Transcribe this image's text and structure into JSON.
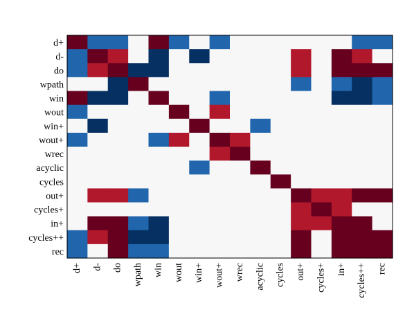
{
  "chart_data": {
    "type": "heatmap",
    "title": "",
    "xlabel": "",
    "ylabel": "",
    "labels": [
      "d+",
      "d-",
      "do",
      "wpath",
      "win",
      "wout",
      "win+",
      "wout+",
      "wrec",
      "acyclic",
      "cycles",
      "out+",
      "cycles+",
      "in+",
      "cycles++",
      "rec"
    ],
    "colors": {
      "0": "#f7f7f7",
      "1": "#2166ac",
      "2": "#053061",
      "3": "#b2182b",
      "4": "#67001f",
      "frame": "#000000"
    },
    "matrix": [
      [
        4,
        1,
        1,
        0,
        4,
        1,
        0,
        1,
        0,
        0,
        0,
        0,
        0,
        0,
        1,
        1
      ],
      [
        1,
        4,
        3,
        0,
        2,
        0,
        2,
        0,
        0,
        0,
        0,
        3,
        0,
        4,
        3,
        0
      ],
      [
        1,
        3,
        4,
        2,
        2,
        0,
        0,
        0,
        0,
        0,
        0,
        3,
        0,
        4,
        4,
        4
      ],
      [
        0,
        0,
        2,
        4,
        0,
        0,
        0,
        0,
        0,
        0,
        0,
        1,
        0,
        1,
        2,
        1
      ],
      [
        4,
        2,
        2,
        0,
        4,
        0,
        0,
        1,
        0,
        0,
        0,
        0,
        0,
        2,
        2,
        1
      ],
      [
        1,
        0,
        0,
        0,
        0,
        4,
        0,
        3,
        0,
        0,
        0,
        0,
        0,
        0,
        0,
        0
      ],
      [
        0,
        2,
        0,
        0,
        0,
        0,
        4,
        0,
        0,
        1,
        0,
        0,
        0,
        0,
        0,
        0
      ],
      [
        1,
        0,
        0,
        0,
        1,
        3,
        0,
        4,
        3,
        0,
        0,
        0,
        0,
        0,
        0,
        0
      ],
      [
        0,
        0,
        0,
        0,
        0,
        0,
        0,
        3,
        4,
        0,
        0,
        0,
        0,
        0,
        0,
        0
      ],
      [
        0,
        0,
        0,
        0,
        0,
        0,
        1,
        0,
        0,
        4,
        0,
        0,
        0,
        0,
        0,
        0
      ],
      [
        0,
        0,
        0,
        0,
        0,
        0,
        0,
        0,
        0,
        0,
        4,
        0,
        0,
        0,
        0,
        0
      ],
      [
        0,
        3,
        3,
        1,
        0,
        0,
        0,
        0,
        0,
        0,
        0,
        4,
        3,
        3,
        4,
        4
      ],
      [
        0,
        0,
        0,
        0,
        0,
        0,
        0,
        0,
        0,
        0,
        0,
        3,
        4,
        3,
        0,
        0
      ],
      [
        0,
        4,
        4,
        1,
        2,
        0,
        0,
        0,
        0,
        0,
        0,
        3,
        3,
        4,
        4,
        0
      ],
      [
        1,
        3,
        4,
        2,
        2,
        0,
        0,
        0,
        0,
        0,
        0,
        4,
        0,
        4,
        4,
        4
      ],
      [
        1,
        0,
        4,
        1,
        1,
        0,
        0,
        0,
        0,
        0,
        0,
        4,
        0,
        4,
        4,
        4
      ]
    ]
  }
}
